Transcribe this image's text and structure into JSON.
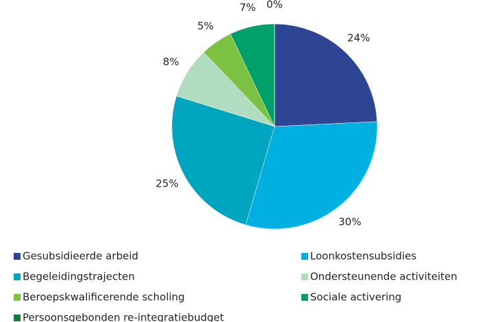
{
  "chart_data": {
    "type": "pie",
    "categories": [
      "Gesubsidieerde arbeid",
      "Loonkostensubsidies",
      "Begeleidingstrajecten",
      "Ondersteunende activiteiten",
      "Beroepskwalificerende scholing",
      "Sociale activering",
      "Persoonsgebonden re-integratiebudget"
    ],
    "values": [
      24,
      30,
      25,
      8,
      5,
      7,
      0
    ],
    "value_labels": [
      "24%",
      "30%",
      "25%",
      "8%",
      "5%",
      "7%",
      "0%"
    ],
    "colors": [
      "#2e4593",
      "#00b0e0",
      "#00a6c0",
      "#b0dcc0",
      "#7cc242",
      "#00a06a",
      "#1a7a40"
    ],
    "legend": "bottom"
  }
}
